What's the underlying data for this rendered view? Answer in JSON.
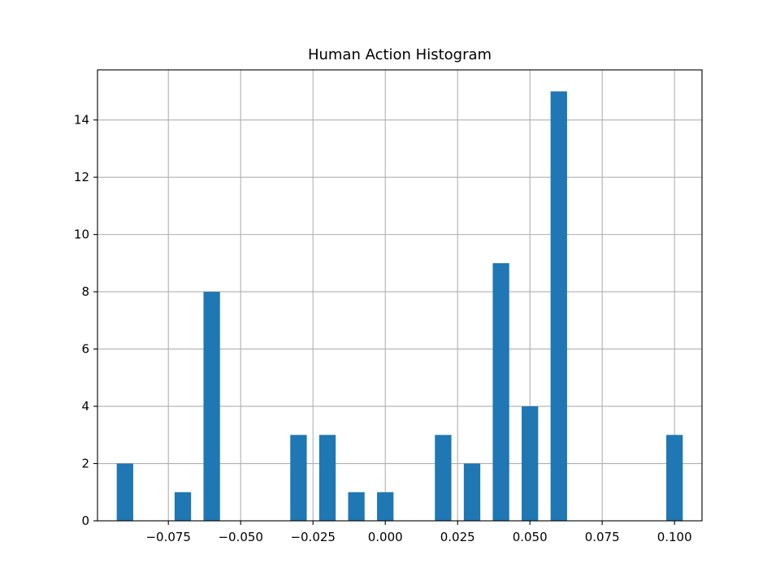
{
  "chart_data": {
    "type": "bar",
    "title": "Human Action Histogram",
    "xlabel": "",
    "ylabel": "",
    "xlim": [
      -0.0995,
      0.1095
    ],
    "ylim": [
      0,
      15.75
    ],
    "grid": true,
    "bar_color": "#1f77b4",
    "bin_width": 0.0057,
    "bins": [
      {
        "x": -0.09,
        "count": 2
      },
      {
        "x": -0.07,
        "count": 1
      },
      {
        "x": -0.06,
        "count": 8
      },
      {
        "x": -0.03,
        "count": 3
      },
      {
        "x": -0.02,
        "count": 3
      },
      {
        "x": -0.01,
        "count": 1
      },
      {
        "x": 0.0,
        "count": 1
      },
      {
        "x": 0.02,
        "count": 3
      },
      {
        "x": 0.03,
        "count": 2
      },
      {
        "x": 0.04,
        "count": 9
      },
      {
        "x": 0.05,
        "count": 4
      },
      {
        "x": 0.06,
        "count": 15
      },
      {
        "x": 0.1,
        "count": 3
      }
    ],
    "x_ticks": [
      {
        "value": -0.075,
        "label": "−0.075"
      },
      {
        "value": -0.05,
        "label": "−0.050"
      },
      {
        "value": -0.025,
        "label": "−0.025"
      },
      {
        "value": 0.0,
        "label": "0.000"
      },
      {
        "value": 0.025,
        "label": "0.025"
      },
      {
        "value": 0.05,
        "label": "0.050"
      },
      {
        "value": 0.075,
        "label": "0.075"
      },
      {
        "value": 0.1,
        "label": "0.100"
      }
    ],
    "y_ticks": [
      {
        "value": 0,
        "label": "0"
      },
      {
        "value": 2,
        "label": "2"
      },
      {
        "value": 4,
        "label": "4"
      },
      {
        "value": 6,
        "label": "6"
      },
      {
        "value": 8,
        "label": "8"
      },
      {
        "value": 10,
        "label": "10"
      },
      {
        "value": 12,
        "label": "12"
      },
      {
        "value": 14,
        "label": "14"
      }
    ]
  }
}
